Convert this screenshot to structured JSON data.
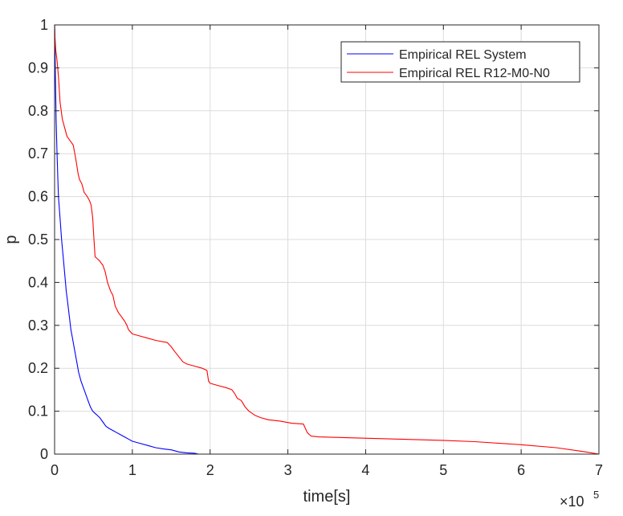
{
  "chart_data": {
    "type": "line",
    "xlabel": "time[s]",
    "ylabel": "p",
    "x_exponent_label": "×10",
    "x_exponent_power": "5",
    "xlim": [
      0,
      700000
    ],
    "ylim": [
      0,
      1
    ],
    "x_ticks": [
      0,
      100000,
      200000,
      300000,
      400000,
      500000,
      600000,
      700000
    ],
    "x_tick_labels": [
      "0",
      "1",
      "2",
      "3",
      "4",
      "5",
      "6",
      "7"
    ],
    "y_ticks": [
      0,
      0.1,
      0.2,
      0.3,
      0.4,
      0.5,
      0.6,
      0.7,
      0.8,
      0.9,
      1.0
    ],
    "y_tick_labels": [
      "0",
      "0.1",
      "0.2",
      "0.3",
      "0.4",
      "0.5",
      "0.6",
      "0.7",
      "0.8",
      "0.9",
      "1"
    ],
    "grid": true,
    "legend_position": "top-right",
    "series": [
      {
        "name": "Empirical REL System",
        "color": "#0000ff",
        "x": [
          0,
          500,
          1000,
          2000,
          3000,
          4000,
          5000,
          7000,
          9000,
          11000,
          13000,
          15000,
          17000,
          19000,
          21000,
          23000,
          25000,
          28000,
          31000,
          34000,
          37000,
          40000,
          43000,
          46000,
          49000,
          52000,
          55000,
          58000,
          62000,
          66000,
          70000,
          75000,
          80000,
          85000,
          90000,
          95000,
          100000,
          110000,
          120000,
          130000,
          140000,
          150000,
          160000,
          170000,
          180000,
          185000
        ],
        "y": [
          1.0,
          0.95,
          0.88,
          0.78,
          0.71,
          0.65,
          0.6,
          0.55,
          0.5,
          0.46,
          0.42,
          0.38,
          0.35,
          0.32,
          0.29,
          0.27,
          0.25,
          0.22,
          0.19,
          0.17,
          0.155,
          0.14,
          0.125,
          0.11,
          0.1,
          0.095,
          0.09,
          0.085,
          0.075,
          0.065,
          0.06,
          0.055,
          0.05,
          0.045,
          0.04,
          0.035,
          0.03,
          0.025,
          0.02,
          0.015,
          0.012,
          0.01,
          0.005,
          0.003,
          0.002,
          0.0
        ]
      },
      {
        "name": "Empirical REL R12-M0-N0",
        "color": "#ff0000",
        "x": [
          0,
          500,
          1500,
          3000,
          5000,
          7000,
          10000,
          13000,
          16000,
          20000,
          24000,
          26000,
          28000,
          30000,
          32000,
          35000,
          38000,
          42000,
          45000,
          47000,
          49000,
          50000,
          52000,
          55000,
          58000,
          60000,
          62000,
          65000,
          68000,
          70000,
          72000,
          75000,
          78000,
          82000,
          86000,
          90000,
          93000,
          95000,
          100000,
          110000,
          120000,
          130000,
          145000,
          150000,
          154000,
          165000,
          170000,
          180000,
          190000,
          196000,
          198000,
          200000,
          210000,
          220000,
          228000,
          232000,
          235000,
          240000,
          245000,
          250000,
          258000,
          265000,
          275000,
          290000,
          305000,
          320000,
          325000,
          328000,
          330000,
          340000,
          380000,
          440000,
          500000,
          540000,
          600000,
          645000,
          680000,
          700000
        ],
        "y": [
          1.0,
          0.97,
          0.94,
          0.92,
          0.88,
          0.82,
          0.78,
          0.76,
          0.74,
          0.73,
          0.72,
          0.7,
          0.68,
          0.655,
          0.64,
          0.63,
          0.61,
          0.6,
          0.59,
          0.58,
          0.55,
          0.52,
          0.46,
          0.455,
          0.45,
          0.445,
          0.44,
          0.425,
          0.4,
          0.39,
          0.38,
          0.37,
          0.345,
          0.33,
          0.32,
          0.31,
          0.3,
          0.29,
          0.28,
          0.275,
          0.27,
          0.265,
          0.26,
          0.25,
          0.24,
          0.215,
          0.21,
          0.205,
          0.2,
          0.195,
          0.17,
          0.165,
          0.16,
          0.155,
          0.15,
          0.14,
          0.13,
          0.125,
          0.11,
          0.1,
          0.09,
          0.085,
          0.08,
          0.077,
          0.072,
          0.07,
          0.05,
          0.045,
          0.042,
          0.04,
          0.038,
          0.035,
          0.032,
          0.029,
          0.022,
          0.015,
          0.006,
          0.0
        ]
      }
    ]
  }
}
